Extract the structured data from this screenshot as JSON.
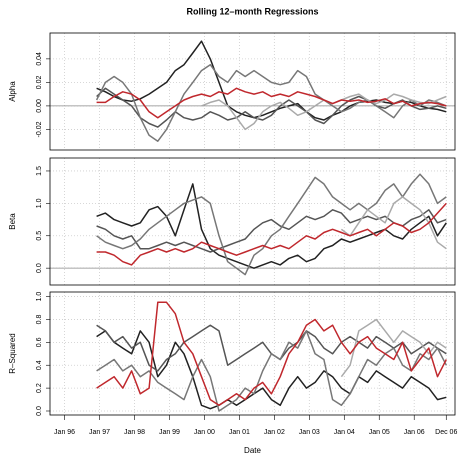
{
  "chart_data": [
    {
      "type": "line",
      "title": "Rolling 12–month Regressions",
      "ylabel": "Alpha",
      "grid": true,
      "hline": 0,
      "x": [
        "Dec 96",
        "Mar 97",
        "Jun 97",
        "Sep 97",
        "Dec 97",
        "Mar 98",
        "Jun 98",
        "Sep 98",
        "Dec 98",
        "Mar 99",
        "Jun 99",
        "Sep 99",
        "Dec 99",
        "Mar 00",
        "Jun 00",
        "Sep 00",
        "Dec 00",
        "Mar 01",
        "Jun 01",
        "Sep 01",
        "Dec 01",
        "Mar 02",
        "Jun 02",
        "Sep 02",
        "Dec 02",
        "Mar 03",
        "Jun 03",
        "Sep 03",
        "Dec 03",
        "Mar 04",
        "Jun 04",
        "Sep 04",
        "Dec 04",
        "Mar 05",
        "Jun 05",
        "Sep 05",
        "Dec 05",
        "Mar 06",
        "Jun 06",
        "Sep 06",
        "Dec 06"
      ],
      "xlim": [
        "Aug 95",
        "Mar 07"
      ],
      "ylim": [
        -0.0375,
        0.062
      ],
      "yticks": [
        -0.02,
        {
          "value": 0,
          "label": "0.00"
        },
        0.02,
        0.04
      ],
      "series": [
        {
          "color": "#222222",
          "values": [
            0.015,
            0.012,
            0.008,
            0.005,
            0.004,
            0.006,
            0.01,
            0.015,
            0.02,
            0.03,
            0.035,
            0.045,
            0.055,
            0.04,
            0.02,
            0.0,
            -0.005,
            -0.008,
            -0.01,
            -0.008,
            -0.005,
            -0.002,
            0.0,
            0.002,
            -0.005,
            -0.01,
            -0.012,
            -0.008,
            -0.005,
            0.0,
            0.003,
            0.004,
            0.005,
            0.003,
            0.002,
            0.004,
            0.003,
            0.0,
            -0.002,
            -0.003,
            -0.005
          ]
        },
        {
          "color": "#555555",
          "values": [
            0.008,
            0.015,
            0.01,
            0.005,
            0.0,
            -0.01,
            -0.015,
            -0.018,
            -0.012,
            -0.005,
            -0.01,
            -0.012,
            -0.01,
            -0.005,
            -0.008,
            -0.012,
            -0.01,
            -0.005,
            -0.01,
            -0.012,
            -0.008,
            0.0,
            0.005,
            0.0,
            -0.005,
            -0.012,
            -0.015,
            -0.008,
            0.0,
            0.005,
            0.008,
            0.005,
            0.0,
            -0.002,
            0.002,
            0.005,
            0.0,
            -0.003,
            -0.002,
            0.0,
            -0.002
          ]
        },
        {
          "color": "#777777",
          "values": [
            0.005,
            0.02,
            0.025,
            0.02,
            0.01,
            -0.01,
            -0.025,
            -0.03,
            -0.02,
            -0.005,
            0.01,
            0.02,
            0.03,
            0.035,
            0.025,
            0.02,
            0.03,
            0.025,
            0.03,
            0.025,
            0.02,
            0.018,
            0.02,
            0.03,
            0.025,
            0.01,
            0.005,
            0.0,
            -0.005,
            -0.002,
            0.003,
            0.005,
            0.0,
            -0.005,
            -0.01,
            0.0,
            0.005,
            0.0,
            0.005,
            0.003,
            0.0
          ]
        },
        {
          "color": "#aaaaaa",
          "values": [
            null,
            null,
            null,
            null,
            null,
            null,
            null,
            null,
            null,
            null,
            null,
            null,
            0.0,
            0.003,
            0.005,
            0.0,
            -0.01,
            -0.02,
            -0.015,
            -0.005,
            0.0,
            0.003,
            -0.002,
            -0.008,
            -0.005,
            0.0,
            0.005,
            0.002,
            0.005,
            0.008,
            0.01,
            0.005,
            0.002,
            0.005,
            0.01,
            0.008,
            0.005,
            0.003,
            0.002,
            0.005,
            0.008
          ]
        },
        {
          "color": "#c0282d",
          "values": [
            0.003,
            0.003,
            0.008,
            0.012,
            0.01,
            0.005,
            -0.005,
            -0.01,
            -0.005,
            0.0,
            0.005,
            0.008,
            0.01,
            0.008,
            0.012,
            0.01,
            0.015,
            0.012,
            0.01,
            0.012,
            0.008,
            0.01,
            0.008,
            0.012,
            0.01,
            0.008,
            0.005,
            0.002,
            0.005,
            0.004,
            0.005,
            0.003,
            0.004,
            0.006,
            0.002,
            0.004,
            0.0,
            0.002,
            0.003,
            0.002,
            0.0
          ]
        }
      ]
    },
    {
      "type": "line",
      "ylabel": "Beta",
      "grid": true,
      "hline": 0,
      "x": [
        "Dec 96",
        "Mar 97",
        "Jun 97",
        "Sep 97",
        "Dec 97",
        "Mar 98",
        "Jun 98",
        "Sep 98",
        "Dec 98",
        "Mar 99",
        "Jun 99",
        "Sep 99",
        "Dec 99",
        "Mar 00",
        "Jun 00",
        "Sep 00",
        "Dec 00",
        "Mar 01",
        "Jun 01",
        "Sep 01",
        "Dec 01",
        "Mar 02",
        "Jun 02",
        "Sep 02",
        "Dec 02",
        "Mar 03",
        "Jun 03",
        "Sep 03",
        "Dec 03",
        "Mar 04",
        "Jun 04",
        "Sep 04",
        "Dec 04",
        "Mar 05",
        "Jun 05",
        "Sep 05",
        "Dec 05",
        "Mar 06",
        "Jun 06",
        "Sep 06",
        "Dec 06"
      ],
      "xlim": [
        "Aug 95",
        "Mar 07"
      ],
      "ylim": [
        -0.26,
        1.7
      ],
      "yticks": [
        {
          "value": 0,
          "label": "0.0"
        },
        0.5,
        {
          "value": 1,
          "label": "1.0"
        },
        1.5
      ],
      "series": [
        {
          "color": "#222222",
          "values": [
            0.8,
            0.85,
            0.75,
            0.7,
            0.65,
            0.7,
            0.9,
            0.95,
            0.8,
            0.5,
            0.9,
            1.3,
            0.6,
            0.3,
            0.2,
            0.15,
            0.1,
            0.05,
            0.0,
            0.05,
            0.1,
            0.05,
            0.15,
            0.2,
            0.1,
            0.15,
            0.3,
            0.35,
            0.45,
            0.4,
            0.45,
            0.5,
            0.55,
            0.6,
            0.5,
            0.45,
            0.6,
            0.7,
            0.8,
            0.5,
            0.7
          ]
        },
        {
          "color": "#555555",
          "values": [
            0.65,
            0.6,
            0.5,
            0.45,
            0.5,
            0.3,
            0.3,
            0.35,
            0.4,
            0.35,
            0.4,
            0.35,
            0.3,
            0.25,
            0.3,
            0.35,
            0.4,
            0.45,
            0.6,
            0.7,
            0.75,
            0.65,
            0.6,
            0.7,
            0.8,
            0.75,
            0.8,
            0.9,
            0.85,
            0.7,
            0.75,
            0.8,
            0.75,
            0.8,
            0.7,
            0.65,
            0.75,
            0.8,
            0.9,
            0.7,
            0.75
          ]
        },
        {
          "color": "#777777",
          "values": [
            0.5,
            0.4,
            0.35,
            0.3,
            0.35,
            0.45,
            0.6,
            0.7,
            0.8,
            0.9,
            1.0,
            1.05,
            1.1,
            1.0,
            0.5,
            0.1,
            0.0,
            -0.1,
            0.2,
            0.3,
            0.5,
            0.6,
            0.8,
            1.0,
            1.2,
            1.4,
            1.3,
            1.1,
            1.0,
            0.9,
            1.0,
            0.9,
            1.0,
            1.2,
            1.3,
            1.1,
            1.3,
            1.45,
            1.3,
            1.0,
            1.1
          ]
        },
        {
          "color": "#aaaaaa",
          "values": [
            null,
            null,
            null,
            null,
            null,
            null,
            null,
            null,
            null,
            null,
            null,
            null,
            null,
            null,
            null,
            null,
            null,
            null,
            null,
            null,
            null,
            null,
            null,
            null,
            null,
            null,
            null,
            null,
            0.6,
            0.5,
            0.7,
            0.9,
            0.8,
            0.7,
            1.0,
            1.1,
            1.0,
            0.9,
            0.7,
            0.4,
            0.3
          ]
        },
        {
          "color": "#c0282d",
          "values": [
            0.25,
            0.25,
            0.2,
            0.1,
            0.05,
            0.2,
            0.25,
            0.3,
            0.25,
            0.3,
            0.25,
            0.3,
            0.4,
            0.35,
            0.3,
            0.25,
            0.2,
            0.25,
            0.3,
            0.35,
            0.3,
            0.35,
            0.3,
            0.4,
            0.5,
            0.45,
            0.55,
            0.6,
            0.55,
            0.5,
            0.55,
            0.6,
            0.5,
            0.6,
            0.7,
            0.65,
            0.55,
            0.6,
            0.7,
            0.85,
            1.0
          ]
        }
      ]
    },
    {
      "type": "line",
      "ylabel": "R–Squared",
      "xlabel": "Date",
      "grid": true,
      "x": [
        "Dec 96",
        "Mar 97",
        "Jun 97",
        "Sep 97",
        "Dec 97",
        "Mar 98",
        "Jun 98",
        "Sep 98",
        "Dec 98",
        "Mar 99",
        "Jun 99",
        "Sep 99",
        "Dec 99",
        "Mar 00",
        "Jun 00",
        "Sep 00",
        "Dec 00",
        "Mar 01",
        "Jun 01",
        "Sep 01",
        "Dec 01",
        "Mar 02",
        "Jun 02",
        "Sep 02",
        "Dec 02",
        "Mar 03",
        "Jun 03",
        "Sep 03",
        "Dec 03",
        "Mar 04",
        "Jun 04",
        "Sep 04",
        "Dec 04",
        "Mar 05",
        "Jun 05",
        "Sep 05",
        "Dec 05",
        "Mar 06",
        "Jun 06",
        "Sep 06",
        "Dec 06"
      ],
      "xlim": [
        "Aug 95",
        "Mar 07"
      ],
      "xticks": [
        "Jan 96",
        "Jan 97",
        "Jan 98",
        "Jan 99",
        "Jan 00",
        "Jan 01",
        "Jan 02",
        "Jan 03",
        "Jan 04",
        "Jan 05",
        "Jan 06",
        "Dec 06"
      ],
      "ylim": [
        -0.035,
        1.04
      ],
      "yticks": [
        {
          "value": 0,
          "label": "0.0"
        },
        0.2,
        0.4,
        0.6,
        0.8,
        {
          "value": 1,
          "label": "1.0"
        }
      ],
      "series": [
        {
          "color": "#222222",
          "values": [
            0.65,
            0.7,
            0.6,
            0.55,
            0.5,
            0.7,
            0.6,
            0.3,
            0.4,
            0.6,
            0.5,
            0.3,
            0.05,
            0.02,
            0.05,
            0.1,
            0.05,
            0.1,
            0.15,
            0.2,
            0.1,
            0.05,
            0.2,
            0.3,
            0.2,
            0.25,
            0.35,
            0.3,
            0.2,
            0.15,
            0.3,
            0.25,
            0.35,
            0.3,
            0.25,
            0.2,
            0.3,
            0.25,
            0.2,
            0.1,
            0.12
          ]
        },
        {
          "color": "#555555",
          "values": [
            0.75,
            0.7,
            0.6,
            0.65,
            0.55,
            0.6,
            0.4,
            0.35,
            0.45,
            0.5,
            0.6,
            0.65,
            0.7,
            0.75,
            0.7,
            0.4,
            0.45,
            0.5,
            0.55,
            0.6,
            0.5,
            0.45,
            0.55,
            0.6,
            0.7,
            0.65,
            0.55,
            0.5,
            0.6,
            0.65,
            0.6,
            0.55,
            0.65,
            0.6,
            0.55,
            0.6,
            0.5,
            0.55,
            0.6,
            0.55,
            0.5
          ]
        },
        {
          "color": "#777777",
          "values": [
            0.35,
            0.4,
            0.45,
            0.35,
            0.4,
            0.3,
            0.35,
            0.25,
            0.2,
            0.15,
            0.1,
            0.3,
            0.45,
            0.3,
            0.0,
            0.05,
            0.1,
            0.2,
            0.15,
            0.35,
            0.5,
            0.45,
            0.6,
            0.55,
            0.7,
            0.5,
            0.45,
            0.1,
            0.05,
            0.15,
            0.3,
            0.45,
            0.4,
            0.5,
            0.55,
            0.4,
            0.35,
            0.5,
            0.45,
            0.55,
            0.4
          ]
        },
        {
          "color": "#aaaaaa",
          "values": [
            null,
            null,
            null,
            null,
            null,
            null,
            null,
            null,
            null,
            null,
            null,
            null,
            null,
            null,
            null,
            null,
            null,
            null,
            null,
            null,
            null,
            null,
            null,
            null,
            null,
            null,
            null,
            null,
            0.3,
            0.4,
            0.7,
            0.75,
            0.8,
            0.7,
            0.6,
            0.7,
            0.65,
            0.6,
            0.5,
            0.6,
            0.55
          ]
        },
        {
          "color": "#c0282d",
          "values": [
            0.2,
            0.25,
            0.3,
            0.2,
            0.35,
            0.15,
            0.2,
            0.95,
            0.95,
            0.85,
            0.6,
            0.5,
            0.3,
            0.1,
            0.05,
            0.1,
            0.15,
            0.1,
            0.2,
            0.25,
            0.15,
            0.3,
            0.5,
            0.6,
            0.75,
            0.8,
            0.7,
            0.75,
            0.6,
            0.5,
            0.6,
            0.65,
            0.55,
            0.5,
            0.45,
            0.6,
            0.35,
            0.45,
            0.55,
            0.3,
            0.45
          ]
        }
      ]
    }
  ]
}
